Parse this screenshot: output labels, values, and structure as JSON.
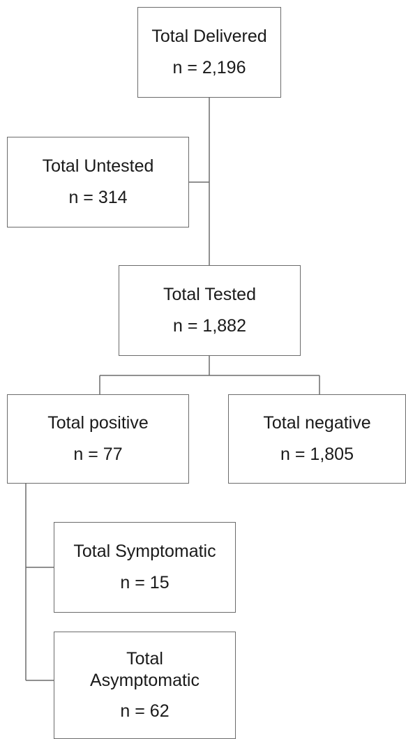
{
  "flowchart": {
    "delivered": {
      "label": "Total Delivered",
      "count": "n = 2,196"
    },
    "untested": {
      "label": "Total Untested",
      "count": "n = 314"
    },
    "tested": {
      "label": "Total Tested",
      "count": "n = 1,882"
    },
    "positive": {
      "label": "Total positive",
      "count": "n = 77"
    },
    "negative": {
      "label": "Total negative",
      "count": "n = 1,805"
    },
    "symptomatic": {
      "label": "Total Symptomatic",
      "count": "n = 15"
    },
    "asymptomatic": {
      "label": "Total Asymptomatic",
      "count": "n = 62"
    }
  },
  "colors": {
    "border": "#6b6b6b",
    "text": "#1a1a1a",
    "background": "#ffffff"
  }
}
